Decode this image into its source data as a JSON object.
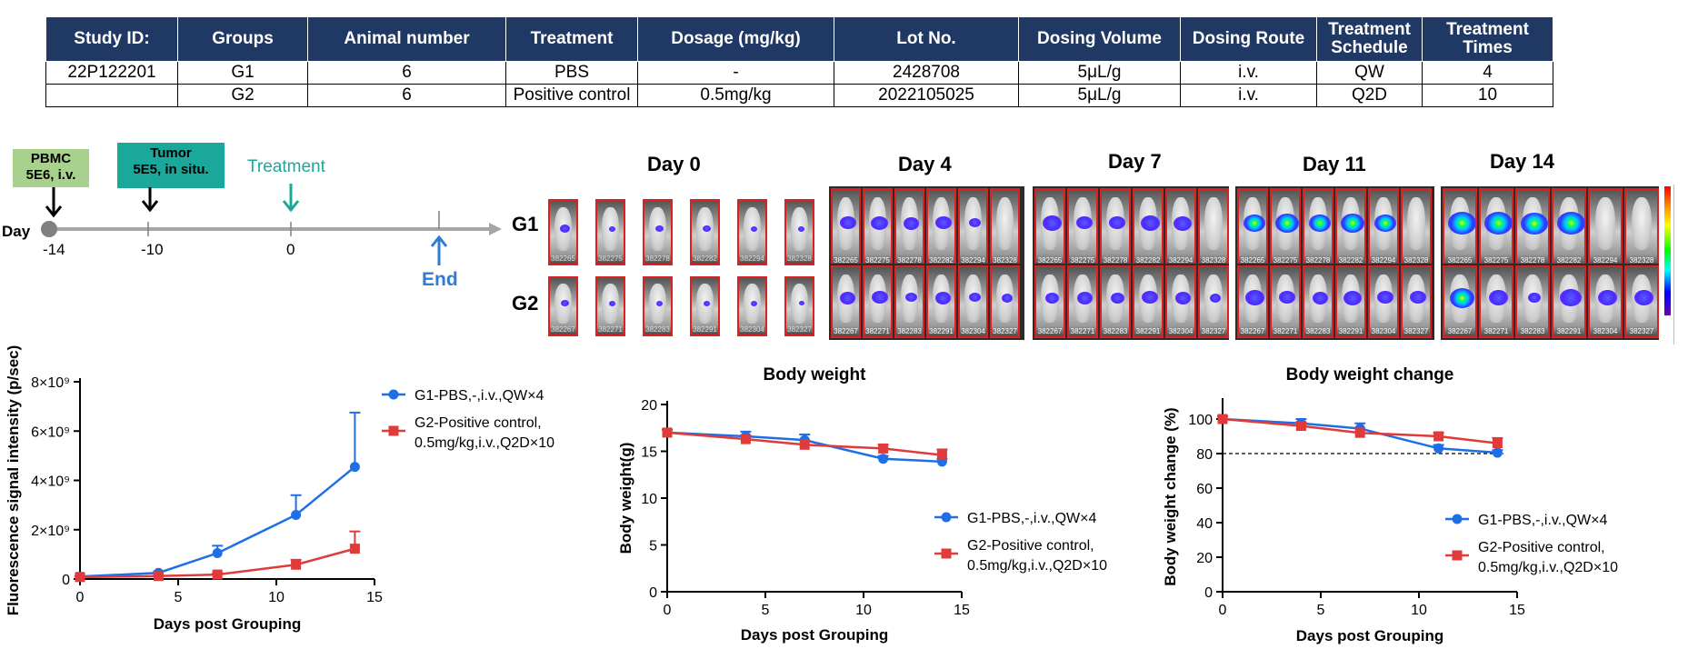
{
  "study_table": {
    "headers": [
      "Study ID:",
      "Groups",
      "Animal number",
      "Treatment",
      "Dosage  (mg/kg)",
      "Lot No.",
      "Dosing Volume",
      "Dosing Route",
      "Treatment Schedule",
      "Treatment Times"
    ],
    "rows": [
      [
        "22P122201",
        "G1",
        "6",
        "PBS",
        "-",
        "2428708",
        "5μL/g",
        "i.v.",
        "QW",
        "4"
      ],
      [
        "",
        "G2",
        "6",
        "Positive control",
        "0.5mg/kg",
        "2022105025",
        "5μL/g",
        "i.v.",
        "Q2D",
        "10"
      ]
    ]
  },
  "timeline": {
    "axis_label": "Day",
    "pbmc_box": "PBMC\n5E6, i.v.",
    "tumor_box": "Tumor\n5E5, in situ.",
    "treatment_label": "Treatment",
    "end_label": "End",
    "ticks": [
      "-14",
      "-10",
      "0"
    ],
    "colors": {
      "pbmc": "#a9d18e",
      "tumor": "#1aa89a",
      "treatment": "#19a89a",
      "end": "#2f7bd6",
      "axis": "#a6a6a6"
    }
  },
  "imaging": {
    "days": [
      "Day 0",
      "Day 4",
      "Day 7",
      "Day 11",
      "Day 14"
    ],
    "groups": [
      "G1",
      "G2"
    ],
    "mouse_ids": {
      "G1": [
        "382265",
        "382275",
        "382278",
        "382282",
        "382294",
        "382328"
      ],
      "G2": [
        "382267",
        "382271",
        "382283",
        "382291",
        "382304",
        "382327"
      ]
    }
  },
  "chart_data": [
    {
      "type": "line",
      "title": "",
      "xlabel": "Days post Grouping",
      "ylabel": "Fluorescence signal intensity (p/sec)",
      "x": [
        0,
        4,
        7,
        11,
        14
      ],
      "xlim": [
        0,
        15
      ],
      "xticks": [
        "0",
        "5",
        "10",
        "15"
      ],
      "ylim": [
        0,
        8000000000
      ],
      "yticks": [
        "0",
        "2×10⁹",
        "4×10⁹",
        "6×10⁹",
        "8×10⁹"
      ],
      "series": [
        {
          "name": "G1-PBS,-,i.v.,QW×4",
          "color": "#1e6fe6",
          "marker": "circle",
          "values": [
            100000000,
            250000000,
            1050000000,
            2600000000,
            4550000000
          ],
          "errors": [
            20000000,
            60000000,
            300000000,
            800000000,
            2200000000
          ]
        },
        {
          "name": "G2-Positive control, 0.5mg/kg,i.v.,Q2D×10",
          "color": "#e03a3a",
          "marker": "square",
          "values": [
            80000000,
            120000000,
            180000000,
            580000000,
            1230000000
          ],
          "errors": [
            20000000,
            30000000,
            60000000,
            200000000,
            700000000
          ]
        }
      ],
      "legend": [
        "G1-PBS,-,i.v.,QW×4",
        "G2-Positive control,",
        "0.5mg/kg,i.v.,Q2D×10"
      ]
    },
    {
      "type": "line",
      "title": "Body weight",
      "xlabel": "Days post Grouping",
      "ylabel": "Body weight(g)",
      "x": [
        0,
        4,
        7,
        11,
        14
      ],
      "xlim": [
        0,
        15
      ],
      "xticks": [
        "0",
        "5",
        "10",
        "15"
      ],
      "ylim": [
        0,
        20
      ],
      "yticks": [
        "0",
        "5",
        "10",
        "15",
        "20"
      ],
      "series": [
        {
          "name": "G1-PBS,-,i.v.,QW×4",
          "color": "#1e6fe6",
          "marker": "circle",
          "values": [
            17.0,
            16.6,
            16.2,
            14.2,
            13.9
          ],
          "errors": [
            0.3,
            0.5,
            0.6,
            0.3,
            0.3
          ]
        },
        {
          "name": "G2-Positive control, 0.5mg/kg,i.v.,Q2D×10",
          "color": "#e03a3a",
          "marker": "square",
          "values": [
            17.0,
            16.3,
            15.7,
            15.3,
            14.6
          ],
          "errors": [
            0.3,
            0.4,
            0.5,
            0.4,
            0.6
          ]
        }
      ],
      "legend": [
        "G1-PBS,-,i.v.,QW×4",
        "G2-Positive control,",
        "0.5mg/kg,i.v.,Q2D×10"
      ]
    },
    {
      "type": "line",
      "title": "Body weight change",
      "xlabel": "Days post Grouping",
      "ylabel": "Body weight change (%)",
      "x": [
        0,
        4,
        7,
        11,
        14
      ],
      "xlim": [
        0,
        15
      ],
      "xticks": [
        "0",
        "5",
        "10",
        "15"
      ],
      "ylim": [
        0,
        110
      ],
      "yticks": [
        "0",
        "20",
        "40",
        "60",
        "80",
        "100"
      ],
      "reference_line": 80,
      "series": [
        {
          "name": "G1-PBS,-,i.v.,QW×4",
          "color": "#1e6fe6",
          "marker": "circle",
          "values": [
            100,
            97.5,
            94.5,
            83,
            80.5
          ],
          "errors": [
            1.5,
            2.5,
            3,
            2,
            1.5
          ]
        },
        {
          "name": "G2-Positive control, 0.5mg/kg,i.v.,Q2D×10",
          "color": "#e03a3a",
          "marker": "square",
          "values": [
            100,
            96,
            92,
            90,
            86
          ],
          "errors": [
            1.5,
            2,
            2.5,
            2,
            3
          ]
        }
      ],
      "legend": [
        "G1-PBS,-,i.v.,QW×4",
        "G2-Positive control,",
        "0.5mg/kg,i.v.,Q2D×10"
      ]
    }
  ]
}
